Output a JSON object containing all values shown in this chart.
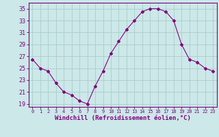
{
  "x": [
    0,
    1,
    2,
    3,
    4,
    5,
    6,
    7,
    8,
    9,
    10,
    11,
    12,
    13,
    14,
    15,
    16,
    17,
    18,
    19,
    20,
    21,
    22,
    23
  ],
  "y": [
    26.5,
    25.0,
    24.5,
    22.5,
    21.0,
    20.5,
    19.5,
    19.0,
    22.0,
    24.5,
    27.5,
    29.5,
    31.5,
    33.0,
    34.5,
    35.0,
    35.0,
    34.5,
    33.0,
    29.0,
    26.5,
    26.0,
    25.0,
    24.5
  ],
  "xlim": [
    -0.5,
    23.5
  ],
  "ylim": [
    18.5,
    36.0
  ],
  "yticks": [
    19,
    21,
    23,
    25,
    27,
    29,
    31,
    33,
    35
  ],
  "xticks": [
    0,
    1,
    2,
    3,
    4,
    5,
    6,
    7,
    8,
    9,
    10,
    11,
    12,
    13,
    14,
    15,
    16,
    17,
    18,
    19,
    20,
    21,
    22,
    23
  ],
  "xlabel": "Windchill (Refroidissement éolien,°C)",
  "line_color": "#800080",
  "marker": "D",
  "marker_size": 2.0,
  "bg_color": "#cce8e8",
  "grid_color": "#aacccc",
  "tick_color": "#800080",
  "label_color": "#800080",
  "font_family": "monospace",
  "ytick_fontsize": 6.0,
  "xtick_fontsize": 5.0,
  "xlabel_fontsize": 6.5
}
